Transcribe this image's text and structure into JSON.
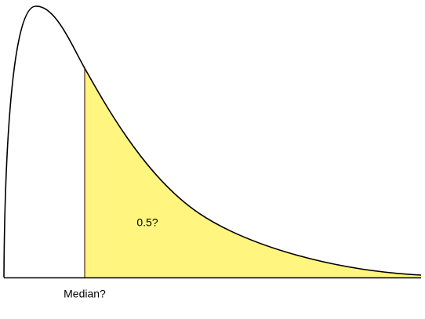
{
  "labels": {
    "area": "0.5?",
    "median": "Median?"
  }
}
